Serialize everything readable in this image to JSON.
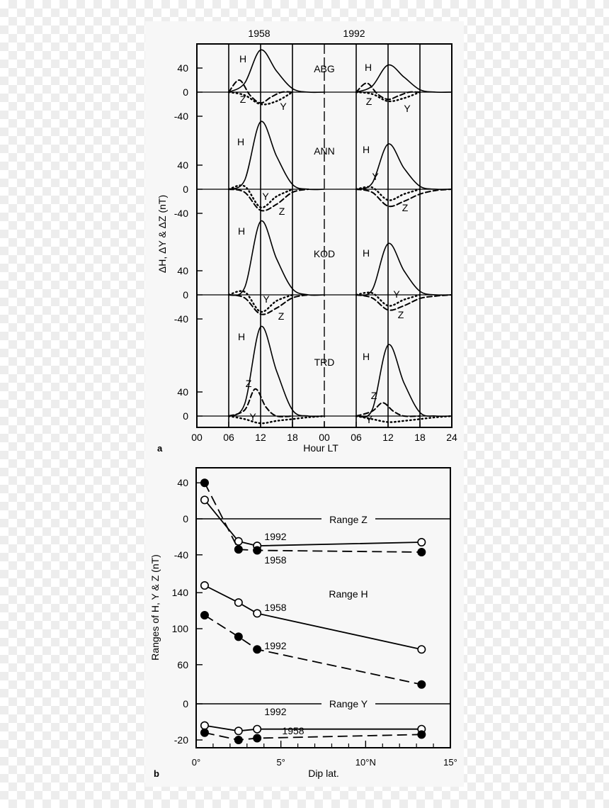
{
  "chart_data": [
    {
      "type": "line",
      "panel_label": "a",
      "ylabel": "ΔH, ΔY & ΔZ (nT)",
      "xlabel": "Hour LT",
      "x_ticks": [
        "00",
        "06",
        "12",
        "18",
        "00",
        "06",
        "12",
        "18",
        "24"
      ],
      "year_labels": [
        "1958",
        "1992"
      ],
      "stations": [
        {
          "name": "ABG",
          "y_ticks": [
            "40",
            "0",
            "-40"
          ],
          "curve_labels": [
            "H",
            "Z",
            "Y",
            "H",
            "Z",
            "Y"
          ],
          "series": [
            {
              "name": "H",
              "year": "1958",
              "x": [
                6,
                9,
                12,
                15,
                18,
                21,
                24
              ],
              "y": [
                0,
                15,
                70,
                35,
                6,
                0,
                0
              ]
            },
            {
              "name": "Z",
              "year": "1958",
              "x": [
                6,
                8,
                10,
                12,
                14,
                16,
                18
              ],
              "y": [
                0,
                20,
                -5,
                -18,
                -8,
                0,
                0
              ]
            },
            {
              "name": "Y",
              "year": "1958",
              "x": [
                6,
                9,
                12,
                15,
                18
              ],
              "y": [
                0,
                -5,
                -20,
                -15,
                0
              ]
            },
            {
              "name": "H",
              "year": "1992",
              "x": [
                6,
                9,
                12,
                15,
                18,
                21,
                24
              ],
              "y": [
                0,
                10,
                45,
                25,
                4,
                0,
                0
              ]
            },
            {
              "name": "Z",
              "year": "1992",
              "x": [
                6,
                8,
                10,
                12,
                14,
                16,
                18
              ],
              "y": [
                0,
                15,
                -3,
                -12,
                -6,
                0,
                0
              ]
            },
            {
              "name": "Y",
              "year": "1992",
              "x": [
                6,
                9,
                12,
                15,
                18
              ],
              "y": [
                0,
                -3,
                -15,
                -10,
                0
              ]
            }
          ]
        },
        {
          "name": "ANN",
          "y_ticks": [
            "40",
            "0",
            "-40"
          ],
          "curve_labels": [
            "H",
            "Y",
            "Z",
            "H",
            "Y",
            "Z"
          ],
          "series": [
            {
              "name": "H",
              "year": "1958",
              "x": [
                6,
                9,
                12,
                15,
                18,
                21,
                24
              ],
              "y": [
                0,
                15,
                112,
                55,
                8,
                0,
                0
              ]
            },
            {
              "name": "Y",
              "year": "1958",
              "x": [
                6,
                9,
                12,
                15,
                18
              ],
              "y": [
                0,
                5,
                -30,
                -12,
                0
              ]
            },
            {
              "name": "Z",
              "year": "1958",
              "x": [
                6,
                9,
                12,
                15,
                18,
                21
              ],
              "y": [
                0,
                -5,
                -35,
                -25,
                -5,
                0
              ]
            },
            {
              "name": "H",
              "year": "1992",
              "x": [
                6,
                9,
                12,
                15,
                18,
                21,
                24
              ],
              "y": [
                0,
                10,
                75,
                35,
                5,
                0,
                0
              ]
            },
            {
              "name": "Y",
              "year": "1992",
              "x": [
                6,
                9,
                12,
                15,
                18
              ],
              "y": [
                0,
                3,
                -18,
                -8,
                0
              ]
            },
            {
              "name": "Z",
              "year": "1992",
              "x": [
                6,
                9,
                12,
                15,
                18,
                21,
                24
              ],
              "y": [
                0,
                -5,
                -28,
                -20,
                -8,
                -2,
                0
              ]
            }
          ]
        },
        {
          "name": "KOD",
          "y_ticks": [
            "40",
            "0",
            "-40"
          ],
          "curve_labels": [
            "H",
            "Y",
            "Z",
            "H",
            "Y",
            "Z"
          ],
          "series": [
            {
              "name": "H",
              "year": "1958",
              "x": [
                6,
                9,
                12,
                15,
                18,
                21,
                24
              ],
              "y": [
                0,
                12,
                122,
                60,
                10,
                0,
                0
              ]
            },
            {
              "name": "Y",
              "year": "1958",
              "x": [
                6,
                9,
                12,
                15,
                18
              ],
              "y": [
                0,
                5,
                -28,
                -10,
                0
              ]
            },
            {
              "name": "Z",
              "year": "1958",
              "x": [
                6,
                9,
                12,
                15,
                18,
                21
              ],
              "y": [
                0,
                -5,
                -32,
                -22,
                -5,
                0
              ]
            },
            {
              "name": "H",
              "year": "1992",
              "x": [
                6,
                9,
                12,
                15,
                18,
                21,
                24
              ],
              "y": [
                0,
                8,
                85,
                40,
                6,
                0,
                0
              ]
            },
            {
              "name": "Y",
              "year": "1992",
              "x": [
                6,
                9,
                12,
                15,
                18
              ],
              "y": [
                0,
                3,
                -18,
                -8,
                0
              ]
            },
            {
              "name": "Z",
              "year": "1992",
              "x": [
                6,
                9,
                12,
                15,
                18,
                21,
                24
              ],
              "y": [
                0,
                -5,
                -25,
                -18,
                -6,
                -2,
                0
              ]
            }
          ]
        },
        {
          "name": "TRD",
          "y_ticks": [
            "40",
            "0"
          ],
          "curve_labels": [
            "H",
            "Z",
            "Y",
            "H",
            "Z",
            "Y"
          ],
          "series": [
            {
              "name": "H",
              "year": "1958",
              "x": [
                6,
                9,
                12,
                15,
                18,
                21,
                24
              ],
              "y": [
                0,
                20,
                148,
                75,
                10,
                0,
                0
              ]
            },
            {
              "name": "Z",
              "year": "1958",
              "x": [
                6,
                9,
                11,
                13,
                15,
                18
              ],
              "y": [
                0,
                10,
                45,
                15,
                0,
                0
              ]
            },
            {
              "name": "Y",
              "year": "1958",
              "x": [
                6,
                9,
                12,
                15,
                18,
                21,
                24
              ],
              "y": [
                0,
                -5,
                -12,
                -8,
                -5,
                -2,
                0
              ]
            },
            {
              "name": "H",
              "year": "1992",
              "x": [
                6,
                9,
                12,
                15,
                18,
                21,
                24
              ],
              "y": [
                0,
                10,
                118,
                55,
                6,
                0,
                0
              ]
            },
            {
              "name": "Z",
              "year": "1992",
              "x": [
                6,
                9,
                11,
                13,
                15,
                18
              ],
              "y": [
                0,
                8,
                22,
                8,
                0,
                0
              ]
            },
            {
              "name": "Y",
              "year": "1992",
              "x": [
                6,
                9,
                12,
                15,
                18,
                21,
                24
              ],
              "y": [
                0,
                -5,
                -10,
                -8,
                -5,
                -2,
                0
              ]
            }
          ]
        }
      ]
    },
    {
      "type": "line",
      "panel_label": "b",
      "ylabel": "Ranges of H, Y & Z (nT)",
      "xlabel": "Dip lat.",
      "x_ticks": [
        "0°",
        "5°",
        "10°N",
        "15°"
      ],
      "xlim": [
        0,
        15
      ],
      "groups": [
        {
          "label": "Range Z",
          "y_ticks": [
            "40",
            "0",
            "-40"
          ],
          "series": [
            {
              "name": "1992",
              "style": "solid-open",
              "x": [
                0.5,
                2.5,
                3.6,
                13.3
              ],
              "y": [
                21,
                -25,
                -30,
                -26
              ]
            },
            {
              "name": "1958",
              "style": "dashed-filled",
              "x": [
                0.5,
                2.5,
                3.6,
                13.3
              ],
              "y": [
                40,
                -34,
                -35,
                -37
              ]
            }
          ]
        },
        {
          "label": "Range H",
          "y_ticks": [
            "140",
            "100",
            "60"
          ],
          "series": [
            {
              "name": "1958",
              "style": "solid-open",
              "x": [
                0.5,
                2.5,
                3.6,
                13.3
              ],
              "y": [
                148,
                129,
                117,
                77
              ]
            },
            {
              "name": "1992",
              "style": "dashed-filled",
              "x": [
                0.5,
                2.5,
                3.6,
                13.3
              ],
              "y": [
                115,
                91,
                77,
                38
              ]
            }
          ]
        },
        {
          "label": "Range Y",
          "y_ticks": [
            "0",
            "-20"
          ],
          "series": [
            {
              "name": "1992",
              "style": "solid-open",
              "x": [
                0.5,
                2.5,
                3.6,
                13.3
              ],
              "y": [
                -12,
                -15,
                -14,
                -14
              ]
            },
            {
              "name": "1958",
              "style": "dashed-filled",
              "x": [
                0.5,
                2.5,
                3.6,
                13.3
              ],
              "y": [
                -16,
                -20,
                -19,
                -17
              ]
            }
          ]
        }
      ]
    }
  ]
}
